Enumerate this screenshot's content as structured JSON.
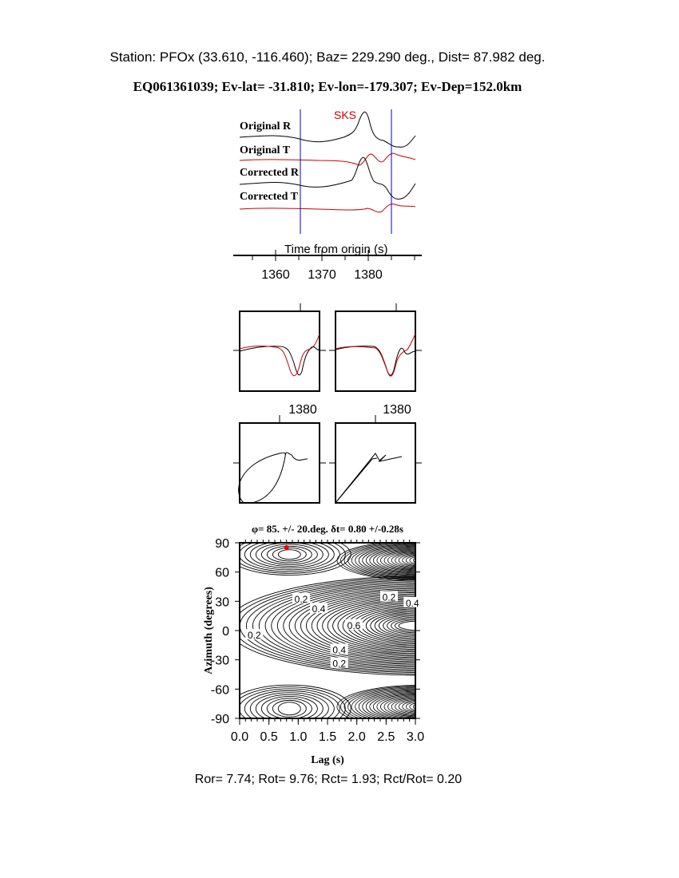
{
  "header": {
    "station_line": "Station: PFOx (33.610, -116.460); Baz=  229.290 deg., Dist=   87.982 deg.",
    "event_line": "EQ061361039; Ev-lat= -31.810; Ev-lon=-179.307; Ev-Dep=152.0km"
  },
  "traces": {
    "phase_label": "SKS",
    "labels": [
      "Original R",
      "Original T",
      "Corrected R",
      "Corrected T"
    ],
    "xlabel": "Time from origin (s)",
    "tick_labels": [
      "1360",
      "1370",
      "1380"
    ],
    "window_start": 1365.3,
    "window_end": 1385
  },
  "particle_panels": {
    "tick_label_left": "1380",
    "tick_label_right": "1380"
  },
  "colors": {
    "radial": "#000000",
    "transverse": "#cc0000",
    "window": "#0000cc",
    "best_point": "#ee0000"
  },
  "chart_data": {
    "type": "contour",
    "title": "φ= 85. +/- 20.deg. δt= 0.80 +/-0.28s",
    "xlabel": "Lag (s)",
    "ylabel": "Azimuth (degrees)",
    "xlim": [
      0.0,
      3.0
    ],
    "ylim": [
      -90,
      90
    ],
    "x_tick_labels": [
      "0.0",
      "0.5",
      "1.0",
      "1.5",
      "2.0",
      "2.5",
      "3.0"
    ],
    "y_tick_labels": [
      "90",
      "60",
      "30",
      "0",
      "-30",
      "-60",
      "-90"
    ],
    "contour_labels": [
      "0.2",
      "0.2",
      "0.4",
      "0.4",
      "0.6",
      "0.2",
      "0.4",
      "0.2"
    ],
    "best_fit": {
      "lag": 0.8,
      "azimuth": 85
    }
  },
  "footer": {
    "ratios": "Ror= 7.74; Rot= 9.76; Rct= 1.93; Rct/Rot= 0.20"
  }
}
